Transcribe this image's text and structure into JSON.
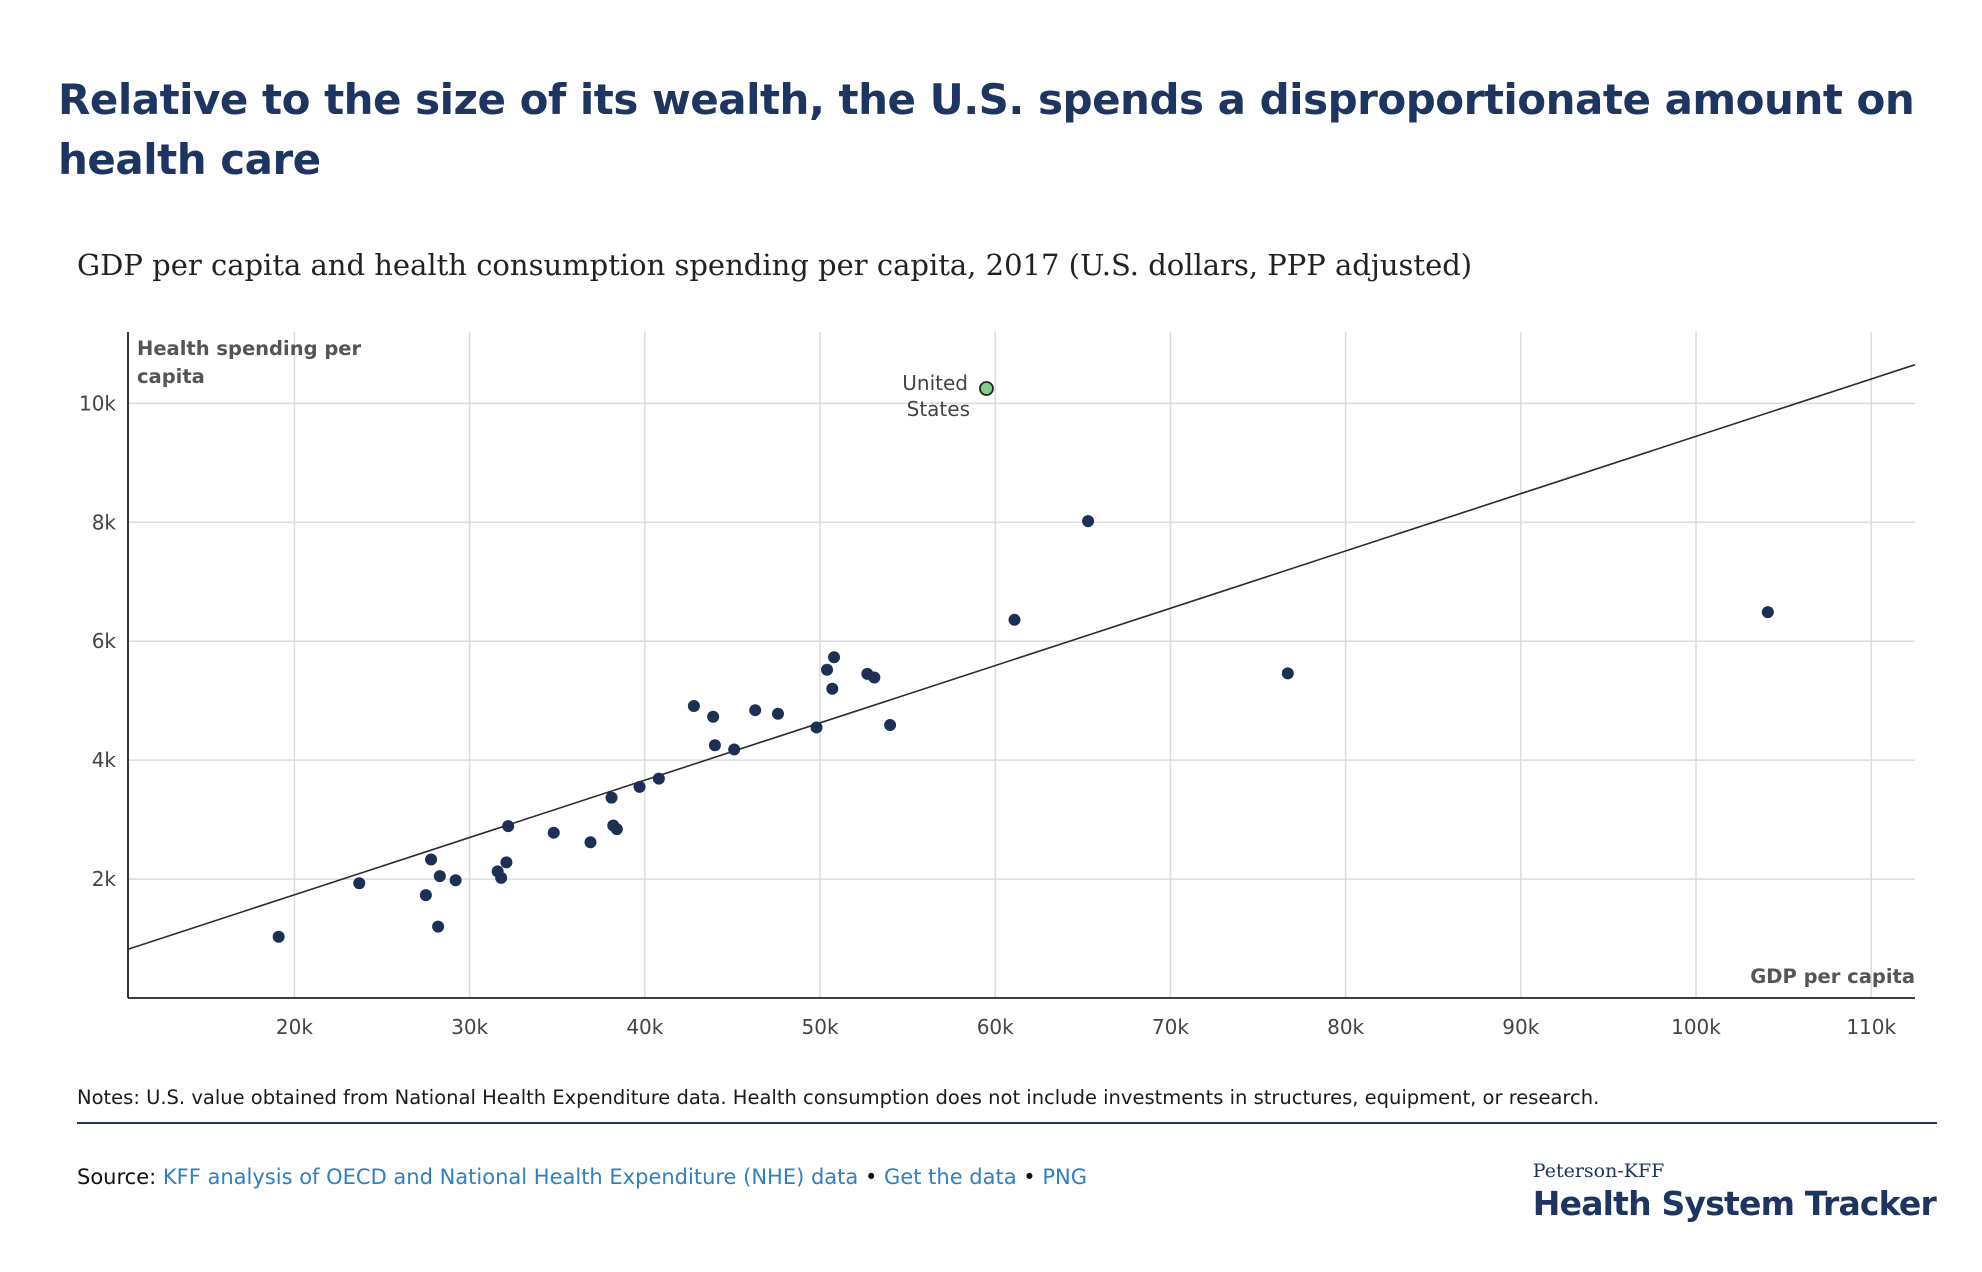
{
  "header": {
    "title": "Relative to the size of its wealth, the U.S. spends a disproportionate amount on health care",
    "subtitle": "GDP per capita and health consumption spending per capita, 2017 (U.S. dollars, PPP adjusted)"
  },
  "chart_data": {
    "type": "scatter",
    "ylabel_line1": "Health spending per",
    "ylabel_line2": "capita",
    "xlabel": "GDP per capita",
    "xlim": [
      10500,
      112500
    ],
    "ylim": [
      0,
      11200
    ],
    "xticks": [
      20000,
      30000,
      40000,
      50000,
      60000,
      70000,
      80000,
      90000,
      100000,
      110000
    ],
    "xtick_labels": [
      "20k",
      "30k",
      "40k",
      "50k",
      "60k",
      "70k",
      "80k",
      "90k",
      "100k",
      "110k"
    ],
    "yticks": [
      2000,
      4000,
      6000,
      8000,
      10000
    ],
    "ytick_labels": [
      "2k",
      "4k",
      "6k",
      "8k",
      "10k"
    ],
    "grid": true,
    "trendline": {
      "x": [
        10500,
        112500
      ],
      "y": [
        820,
        10650
      ]
    },
    "highlight": {
      "label_line1": "United",
      "label_line2": "States",
      "x": 59500,
      "y": 10250,
      "color": "#7fd08a"
    },
    "point_color": "#1e2f55",
    "points": [
      {
        "x": 19100,
        "y": 1030
      },
      {
        "x": 23700,
        "y": 1930
      },
      {
        "x": 27500,
        "y": 1730
      },
      {
        "x": 27800,
        "y": 2330
      },
      {
        "x": 28200,
        "y": 1200
      },
      {
        "x": 28300,
        "y": 2050
      },
      {
        "x": 29200,
        "y": 1980
      },
      {
        "x": 31600,
        "y": 2130
      },
      {
        "x": 31800,
        "y": 2020
      },
      {
        "x": 32100,
        "y": 2280
      },
      {
        "x": 32200,
        "y": 2890
      },
      {
        "x": 34800,
        "y": 2780
      },
      {
        "x": 36900,
        "y": 2620
      },
      {
        "x": 38100,
        "y": 3370
      },
      {
        "x": 38200,
        "y": 2900
      },
      {
        "x": 38400,
        "y": 2840
      },
      {
        "x": 39700,
        "y": 3550
      },
      {
        "x": 40800,
        "y": 3690
      },
      {
        "x": 42800,
        "y": 4910
      },
      {
        "x": 43900,
        "y": 4730
      },
      {
        "x": 44000,
        "y": 4250
      },
      {
        "x": 45100,
        "y": 4180
      },
      {
        "x": 46300,
        "y": 4840
      },
      {
        "x": 47600,
        "y": 4780
      },
      {
        "x": 49800,
        "y": 4550
      },
      {
        "x": 50400,
        "y": 5520
      },
      {
        "x": 50700,
        "y": 5200
      },
      {
        "x": 50800,
        "y": 5730
      },
      {
        "x": 52700,
        "y": 5450
      },
      {
        "x": 53100,
        "y": 5390
      },
      {
        "x": 54000,
        "y": 4590
      },
      {
        "x": 61100,
        "y": 6360
      },
      {
        "x": 65300,
        "y": 8020
      },
      {
        "x": 76700,
        "y": 5460
      },
      {
        "x": 104100,
        "y": 6490
      }
    ]
  },
  "footer": {
    "notes": "Notes: U.S. value obtained from National Health Expenditure data. Health consumption does not include investments in structures, equipment, or research.",
    "source_label": "Source:",
    "source_link": "KFF analysis of OECD and National Health Expenditure (NHE) data",
    "sep": "•",
    "get_data": "Get the data",
    "png": "PNG",
    "brand_small": "Peterson-KFF",
    "brand_big": "Health System Tracker"
  }
}
